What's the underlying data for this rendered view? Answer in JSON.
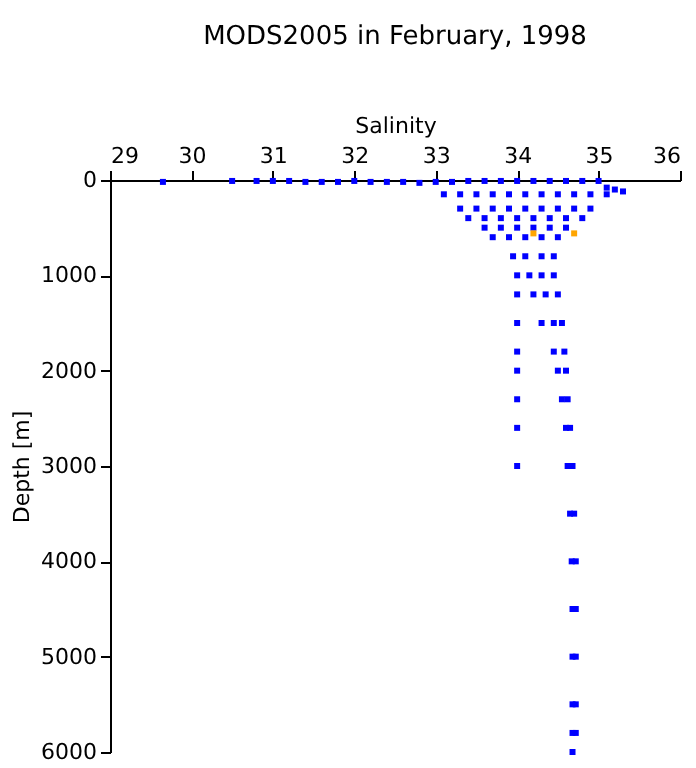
{
  "chart_data": {
    "type": "scatter",
    "title": "MODS2005 in February, 1998",
    "xlabel": "Salinity",
    "ylabel": "Depth [m]",
    "xlim": [
      29,
      36
    ],
    "xticks": [
      29,
      30,
      31,
      32,
      33,
      34,
      35,
      36
    ],
    "ylim": [
      6000,
      0
    ],
    "yticks": [
      0,
      1000,
      2000,
      3000,
      4000,
      5000,
      6000
    ],
    "grid": false,
    "legend": false,
    "marker": "square",
    "series": [
      {
        "color": "#0000ff",
        "x": [
          29.65,
          30.5,
          30.8,
          31.0,
          31.2,
          31.4,
          31.6,
          31.8,
          32.0,
          32.2,
          32.4,
          32.6,
          32.8,
          33.0,
          33.2,
          33.4,
          33.6,
          33.8,
          34.0,
          34.2,
          34.4,
          34.6,
          34.8,
          35.0,
          35.1,
          35.2,
          35.3,
          33.1,
          33.3,
          33.5,
          33.7,
          33.9,
          34.1,
          34.3,
          34.5,
          34.7,
          34.9,
          35.1,
          33.3,
          33.5,
          33.7,
          33.9,
          34.1,
          34.3,
          34.5,
          34.7,
          34.9,
          33.4,
          33.6,
          33.8,
          34.0,
          34.2,
          34.4,
          34.6,
          34.8,
          33.6,
          33.8,
          34.0,
          34.2,
          34.4,
          34.6,
          33.7,
          33.9,
          34.1,
          34.3,
          34.5,
          33.95,
          34.1,
          34.3,
          34.45,
          34.0,
          34.15,
          34.3,
          34.45,
          34.0,
          34.2,
          34.35,
          34.5,
          34.0,
          34.3,
          34.45,
          34.55,
          34.0,
          34.45,
          34.58,
          34.0,
          34.5,
          34.6,
          34.0,
          34.55,
          34.62,
          34.0,
          34.6,
          34.65,
          34.0,
          34.62,
          34.68,
          34.65,
          34.7,
          34.67,
          34.72,
          34.68,
          34.72,
          34.68,
          34.72,
          34.68,
          34.72,
          34.68,
          34.72,
          34.68
        ],
        "values": [
          20,
          10,
          10,
          10,
          10,
          20,
          20,
          20,
          10,
          20,
          20,
          20,
          30,
          20,
          20,
          10,
          10,
          10,
          10,
          10,
          10,
          10,
          10,
          10,
          80,
          100,
          120,
          150,
          150,
          150,
          150,
          150,
          150,
          150,
          150,
          150,
          150,
          150,
          300,
          300,
          300,
          300,
          300,
          300,
          300,
          300,
          300,
          400,
          400,
          400,
          400,
          400,
          400,
          400,
          400,
          500,
          500,
          500,
          500,
          500,
          500,
          600,
          600,
          600,
          600,
          600,
          800,
          800,
          800,
          800,
          1000,
          1000,
          1000,
          1000,
          1200,
          1200,
          1200,
          1200,
          1500,
          1500,
          1500,
          1500,
          1800,
          1800,
          1800,
          2000,
          2000,
          2000,
          2300,
          2300,
          2300,
          2600,
          2600,
          2600,
          3000,
          3000,
          3000,
          3500,
          3500,
          4000,
          4000,
          4500,
          4500,
          5000,
          5000,
          5500,
          5500,
          5800,
          5800,
          6000
        ]
      },
      {
        "color": "#ffa500",
        "x": [
          34.2,
          34.7
        ],
        "values": [
          560,
          560
        ]
      }
    ]
  }
}
